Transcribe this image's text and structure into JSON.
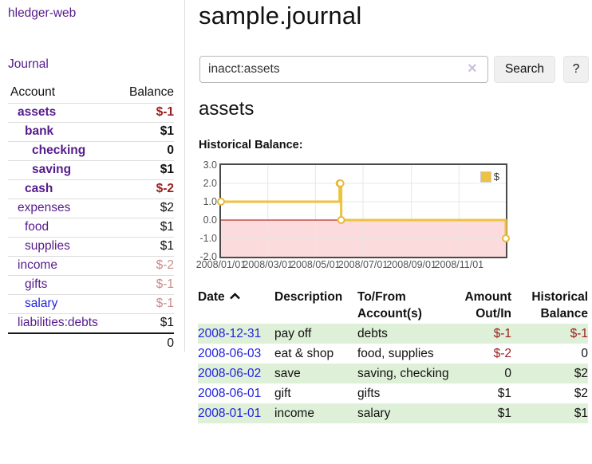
{
  "app": {
    "brand": "hledger-web",
    "nav_journal": "Journal"
  },
  "sidebar": {
    "header": {
      "account": "Account",
      "balance": "Balance"
    },
    "accounts": [
      {
        "name": "assets",
        "balance": "$-1",
        "depth": 1,
        "bold": true,
        "balance_tone": "negative",
        "link_tone": "visited"
      },
      {
        "name": "bank",
        "balance": "$1",
        "depth": 2,
        "bold": true,
        "balance_tone": "normal",
        "link_tone": "visited"
      },
      {
        "name": "checking",
        "balance": "0",
        "depth": 3,
        "bold": true,
        "balance_tone": "normal",
        "link_tone": "visited"
      },
      {
        "name": "saving",
        "balance": "$1",
        "depth": 3,
        "bold": true,
        "balance_tone": "normal",
        "link_tone": "visited"
      },
      {
        "name": "cash",
        "balance": "$-2",
        "depth": 2,
        "bold": true,
        "balance_tone": "negative",
        "link_tone": "visited"
      },
      {
        "name": "expenses",
        "balance": "$2",
        "depth": 1,
        "bold": false,
        "balance_tone": "normal",
        "link_tone": "visited"
      },
      {
        "name": "food",
        "balance": "$1",
        "depth": 2,
        "bold": false,
        "balance_tone": "normal",
        "link_tone": "visited"
      },
      {
        "name": "supplies",
        "balance": "$1",
        "depth": 2,
        "bold": false,
        "balance_tone": "normal",
        "link_tone": "visited"
      },
      {
        "name": "income",
        "balance": "$-2",
        "depth": 1,
        "bold": false,
        "balance_tone": "muted",
        "link_tone": "visited"
      },
      {
        "name": "gifts",
        "balance": "$-1",
        "depth": 2,
        "bold": false,
        "balance_tone": "muted",
        "link_tone": "visited"
      },
      {
        "name": "salary",
        "balance": "$-1",
        "depth": 2,
        "bold": false,
        "balance_tone": "muted",
        "link_tone": "unvisited"
      },
      {
        "name": "liabilities:debts",
        "balance": "$1",
        "depth": 1,
        "bold": false,
        "balance_tone": "normal",
        "link_tone": "visited"
      }
    ],
    "total": "0"
  },
  "main": {
    "title": "sample.journal",
    "search": {
      "value": "inacct:assets",
      "clear_icon": "×",
      "button_label": "Search",
      "help_label": "?"
    },
    "account_heading": "assets",
    "chart_label": "Historical Balance:"
  },
  "chart_data": {
    "type": "line",
    "style": "steps",
    "title": "Historical Balance:",
    "series": [
      {
        "name": "$",
        "color": "#edc240",
        "points": [
          [
            "2008-01-01",
            1
          ],
          [
            "2008-06-01",
            2
          ],
          [
            "2008-06-02",
            2
          ],
          [
            "2008-06-03",
            0
          ],
          [
            "2008-12-31",
            -1
          ]
        ]
      }
    ],
    "x_range": [
      "2008-01-01",
      "2008-12-31"
    ],
    "ylim": [
      -2,
      3
    ],
    "y_ticks": [
      3,
      2,
      1,
      0,
      -1,
      -2
    ],
    "y_tick_labels": [
      "3.0",
      "2.0",
      "1.0",
      "0.0",
      "-1.0",
      "-2.0"
    ],
    "x_ticks": [
      "2008-01-01",
      "2008-03-01",
      "2008-05-01",
      "2008-07-01",
      "2008-09-01",
      "2008-11-01"
    ],
    "x_tick_labels": [
      "2008/01/01",
      "2008/03/01",
      "2008/05/01",
      "2008/07/01",
      "2008/09/01",
      "2008/11/01"
    ],
    "grid": true,
    "negative_region_color": "#fbdbdb",
    "zero_line_color": "#a40000",
    "grid_color": "#e7e7e7",
    "point_fill": "#ffffff",
    "legend": {
      "label": "$",
      "position": "top-right"
    }
  },
  "transactions": {
    "headers": [
      {
        "label": "Date",
        "sortable": true,
        "sort": "asc",
        "align": "left"
      },
      {
        "label": "Description",
        "align": "left"
      },
      {
        "label": "To/From Account(s)",
        "align": "left"
      },
      {
        "label": "Amount Out/In",
        "align": "right"
      },
      {
        "label": "Historical Balance",
        "align": "right"
      }
    ],
    "rows": [
      {
        "date": "2008-12-31",
        "description": "pay off",
        "accounts": "debts",
        "amount": "$-1",
        "amount_negative": true,
        "balance": "$-1",
        "balance_negative": true,
        "shaded": true
      },
      {
        "date": "2008-06-03",
        "description": "eat & shop",
        "accounts": "food, supplies",
        "amount": "$-2",
        "amount_negative": true,
        "balance": "0",
        "balance_negative": false,
        "shaded": false
      },
      {
        "date": "2008-06-02",
        "description": "save",
        "accounts": "saving, checking",
        "amount": "0",
        "amount_negative": false,
        "balance": "$2",
        "balance_negative": false,
        "shaded": true
      },
      {
        "date": "2008-06-01",
        "description": "gift",
        "accounts": "gifts",
        "amount": "$1",
        "amount_negative": false,
        "balance": "$2",
        "balance_negative": false,
        "shaded": false
      },
      {
        "date": "2008-01-01",
        "description": "income",
        "accounts": "salary",
        "amount": "$1",
        "amount_negative": false,
        "balance": "$1",
        "balance_negative": false,
        "shaded": true
      }
    ]
  }
}
